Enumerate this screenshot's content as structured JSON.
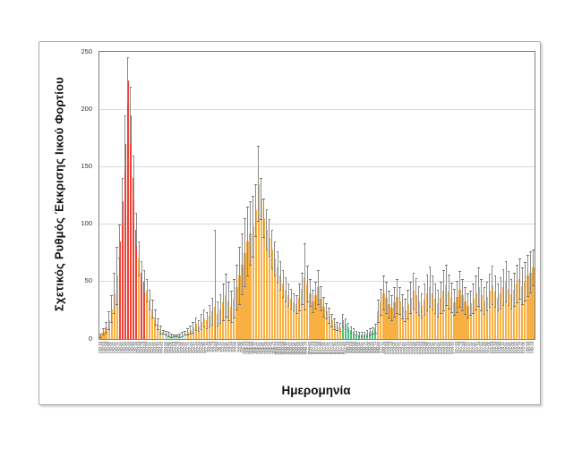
{
  "chart_data": {
    "type": "bar",
    "title": "",
    "ylabel": "Σχετικός Ρυθμός Έκκρισης Ιικού Φορτίου",
    "xlabel": "Ημερομηνία",
    "ylim": [
      0,
      250
    ],
    "yticks": [
      0,
      50,
      100,
      150,
      200,
      250
    ],
    "grid": "horizontal",
    "legend": "none",
    "colors": {
      "orange": "#F8B042",
      "red": "#EE4237",
      "pale": "#BCE2C6",
      "green": "#52BE80",
      "error": "#8C8C8C",
      "error_cap": "#757575",
      "gridline": "#D9D9D9",
      "plot_border": "#808080",
      "frame_border": "#A8A8A8"
    },
    "color_map": {
      "o": "orange",
      "r": "red",
      "p": "pale",
      "g": "green"
    },
    "bar_color_codes": "ooooooorrrrrrrorroooooopppppppppooooooooooooooooooooooooooooooooooooooooooooooooooooooooogggggggggggggoooooooooooooooooooooooooooooooooooooooooooooooooooooooooo",
    "categories": [
      "01-Οκτ",
      "03-Οκτ",
      "05-Οκτ",
      "08-Οκτ",
      "10-Οκτ",
      "12-Οκτ",
      "15-Οκτ",
      "17-Οκτ",
      "19-Οκτ",
      "22-Οκτ",
      "24-Οκτ",
      "26-Οκτ",
      "29-Οκτ",
      "31-Οκτ",
      "02-Νοε",
      "05-Νοε",
      "07-Νοε",
      "09-Νοε",
      "12-Νοε",
      "14-Νοε",
      "16-Νοε",
      "19-Νοε",
      "21-Νοε",
      "23-Νοε",
      "26-Νοε",
      "28-Νοε",
      "30-Νοε",
      "03-Δεκ",
      "05-Δεκ",
      "07-Δεκ",
      "10-Δεκ",
      "12-Δεκ",
      "14-Δεκ",
      "17-Δεκ",
      "19-Δεκ",
      "21-Δεκ",
      "24-Δεκ",
      "26-Δεκ",
      "28-Δεκ",
      "31-Δεκ",
      "02-Ιαν",
      "04-Ιαν",
      "07-Ιαν",
      "09-Ιαν",
      "11-Ιαν",
      "14-Ιαν",
      "16-Ιαν",
      "18-Ιαν",
      "21-Ιαν",
      "23-Ιαν",
      "25-Ιαν",
      "28-Ιαν",
      "30-Ιαν",
      "01-Φεβ",
      "04-Φεβ",
      "06-Φεβ",
      "08-Φεβ",
      "11-Φεβ",
      "13-Φεβ",
      "15-Φεβ",
      "18-Φεβ",
      "20-Φεβ",
      "22-Φεβ",
      "25-Φεβ",
      "27-Φεβ",
      "01-Μαρ",
      "04-Μαρ",
      "06-Μαρ",
      "08-Μαρ",
      "11-Μαρ",
      "13-Μαρ",
      "15-Μαρ",
      "18-Μαρ",
      "20-Μαρ",
      "22-Μαρ",
      "25-Μαρ",
      "27-Μαρ",
      "29-Μαρ",
      "01-Απρ",
      "03-Απρ",
      "05-Απρ",
      "08-Απρ",
      "10-Απρ",
      "12-Απρ",
      "15-Απρ",
      "17-Απρ",
      "19-Απρ",
      "22-Απρ",
      "24-Απρ",
      "26-Απρ",
      "29-Απρ",
      "01-Μαϊ",
      "03-Μαϊ",
      "06-Μαϊ",
      "08-Μαϊ",
      "10-Μαϊ",
      "13-Μαϊ",
      "15-Μαϊ",
      "17-Μαϊ",
      "20-Μαϊ",
      "22-Μαϊ",
      "24-Μαϊ",
      "27-Μαϊ",
      "29-Μαϊ",
      "31-Μαϊ",
      "03-Ιουν",
      "05-Ιουν",
      "07-Ιουν",
      "10-Ιουν",
      "12-Ιουν",
      "14-Ιουν",
      "17-Ιουν",
      "19-Ιουν",
      "21-Ιουν",
      "24-Ιουν",
      "26-Ιουν",
      "28-Ιουν",
      "01-Ιουλ",
      "03-Ιουλ",
      "05-Ιουλ",
      "08-Ιουλ",
      "10-Ιουλ",
      "12-Ιουλ",
      "15-Ιουλ",
      "17-Ιουλ",
      "19-Ιουλ",
      "22-Ιουλ",
      "24-Ιουλ",
      "26-Ιουλ",
      "29-Ιουλ",
      "31-Ιουλ",
      "02-Αυγ",
      "05-Αυγ",
      "07-Αυγ",
      "09-Αυγ",
      "12-Αυγ",
      "14-Αυγ",
      "16-Αυγ",
      "19-Αυγ",
      "21-Αυγ",
      "23-Αυγ",
      "26-Αυγ",
      "28-Αυγ",
      "30-Αυγ",
      "02-Σεπ",
      "04-Σεπ",
      "06-Σεπ",
      "09-Σεπ",
      "11-Σεπ",
      "13-Σεπ",
      "16-Σεπ",
      "18-Σεπ",
      "20-Σεπ",
      "23-Σεπ",
      "25-Σεπ",
      "27-Σεπ",
      "30-Σεπ",
      "02-Οκτ",
      "04-Οκτ",
      "07-Οκτ"
    ],
    "values": [
      3,
      6,
      10,
      16,
      26,
      40,
      55,
      85,
      120,
      170,
      225,
      195,
      140,
      95,
      70,
      58,
      50,
      42,
      34,
      26,
      19,
      13,
      8,
      6,
      5,
      4,
      3,
      3,
      3,
      3,
      4,
      5,
      6,
      8,
      10,
      13,
      11,
      15,
      18,
      16,
      20,
      24,
      28,
      22,
      26,
      32,
      38,
      33,
      28,
      35,
      45,
      55,
      65,
      75,
      85,
      92,
      98,
      112,
      135,
      122,
      105,
      95,
      88,
      78,
      70,
      62,
      55,
      48,
      43,
      38,
      35,
      32,
      30,
      36,
      44,
      54,
      48,
      40,
      33,
      38,
      45,
      35,
      28,
      24,
      20,
      16,
      13,
      11,
      10,
      16,
      13,
      10,
      8,
      6,
      5,
      4,
      4,
      4,
      5,
      6,
      7,
      9,
      24,
      32,
      40,
      36,
      30,
      27,
      32,
      37,
      33,
      28,
      25,
      30,
      36,
      42,
      38,
      33,
      29,
      34,
      40,
      45,
      40,
      35,
      31,
      36,
      42,
      47,
      41,
      36,
      32,
      37,
      43,
      38,
      33,
      29,
      31,
      35,
      40,
      45,
      38,
      33,
      37,
      42,
      47,
      41,
      36,
      40,
      45,
      50,
      44,
      39,
      43,
      48,
      52,
      46,
      50,
      55,
      58,
      62
    ],
    "error_top": [
      5,
      9,
      15,
      24,
      38,
      58,
      80,
      100,
      140,
      195,
      245,
      220,
      160,
      110,
      85,
      68,
      60,
      52,
      43,
      34,
      26,
      18,
      12,
      8,
      7,
      6,
      5,
      4,
      4,
      5,
      6,
      7,
      9,
      12,
      15,
      19,
      16,
      22,
      26,
      23,
      30,
      36,
      95,
      33,
      39,
      48,
      57,
      50,
      42,
      52,
      65,
      80,
      92,
      105,
      115,
      120,
      125,
      135,
      168,
      140,
      122,
      113,
      104,
      95,
      85,
      76,
      68,
      60,
      54,
      48,
      44,
      40,
      38,
      48,
      58,
      83,
      64,
      52,
      43,
      50,
      60,
      46,
      37,
      31,
      27,
      22,
      18,
      15,
      14,
      22,
      18,
      14,
      11,
      9,
      7,
      6,
      6,
      6,
      8,
      9,
      10,
      13,
      34,
      44,
      55,
      50,
      42,
      38,
      45,
      52,
      45,
      39,
      35,
      43,
      50,
      58,
      53,
      46,
      40,
      48,
      56,
      63,
      55,
      48,
      43,
      50,
      60,
      65,
      56,
      49,
      44,
      51,
      59,
      52,
      45,
      40,
      42,
      48,
      55,
      62,
      52,
      45,
      50,
      57,
      64,
      55,
      48,
      54,
      61,
      68,
      59,
      52,
      58,
      65,
      70,
      62,
      67,
      73,
      76,
      78
    ]
  }
}
